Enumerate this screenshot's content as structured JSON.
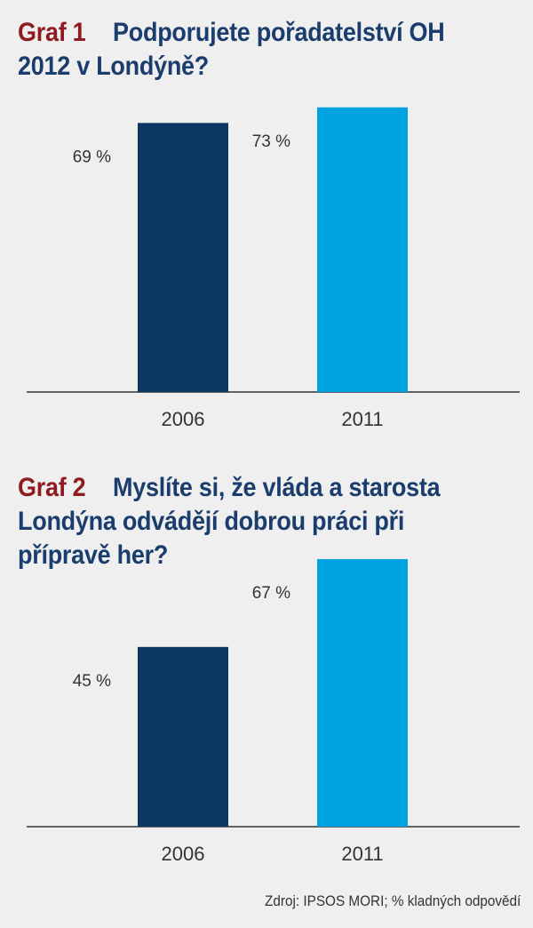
{
  "chart_data": [
    {
      "type": "bar",
      "label": "Graf 1",
      "title": "Podporujete pořadatelství OH 2012 v Londýně?",
      "categories": [
        "2006",
        "2011"
      ],
      "values": [
        69,
        73
      ],
      "value_labels": [
        "69 %",
        "73 %"
      ],
      "colors": [
        "#0b3863",
        "#00a3df"
      ],
      "ylim": [
        0,
        75
      ]
    },
    {
      "type": "bar",
      "label": "Graf 2",
      "title": "Myslíte si, že vláda a starosta Londýna odvádějí dobrou práci při přípravě her?",
      "categories": [
        "2006",
        "2011"
      ],
      "values": [
        45,
        67
      ],
      "value_labels": [
        "45 %",
        "67 %"
      ],
      "colors": [
        "#0b3863",
        "#00a3df"
      ],
      "ylim": [
        0,
        69
      ]
    }
  ],
  "source": "Zdroj: IPSOS MORI; % kladných odpovědí"
}
